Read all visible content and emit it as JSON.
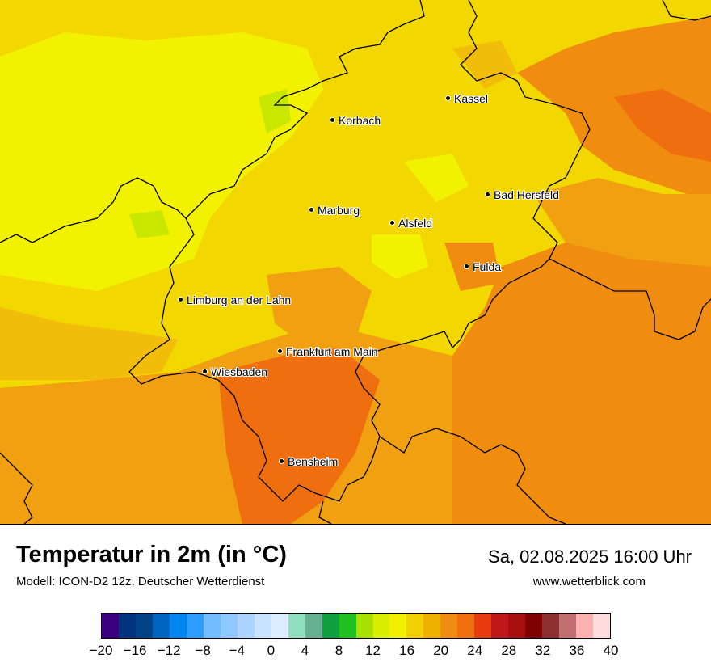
{
  "map": {
    "cities": [
      {
        "name": "Kassel",
        "icon": "city-dot-icon"
      },
      {
        "name": "Korbach",
        "icon": "city-dot-icon"
      },
      {
        "name": "Bad Hersfeld",
        "icon": "city-dot-icon"
      },
      {
        "name": "Marburg",
        "icon": "city-dot-icon"
      },
      {
        "name": "Alsfeld",
        "icon": "city-dot-icon"
      },
      {
        "name": "Fulda",
        "icon": "city-dot-icon"
      },
      {
        "name": "Limburg an der Lahn",
        "icon": "city-dot-icon"
      },
      {
        "name": "Frankfurt am Main",
        "icon": "city-dot-icon"
      },
      {
        "name": "Wiesbaden",
        "icon": "city-dot-icon"
      },
      {
        "name": "Bensheim",
        "icon": "city-dot-icon"
      }
    ],
    "colors": {
      "light_yellow": "#f2f200",
      "yellow": "#f2d800",
      "gold": "#f2bc0a",
      "orange": "#f08c10",
      "dark_orange": "#ee6e10",
      "green": "#c8e800",
      "border": "#000000"
    }
  },
  "footer": {
    "title": "Temperatur in 2m (in °C)",
    "model": "Modell: ICON-D2 12z, Deutscher Wetterdienst",
    "datetime": "Sa, 02.08.2025 16:00 Uhr",
    "website": "www.wetterblick.com"
  },
  "legend": {
    "colors": [
      "#3a0080",
      "#00347f",
      "#004485",
      "#0064c0",
      "#0086f0",
      "#2c9cff",
      "#72bcff",
      "#8ec8ff",
      "#acd4ff",
      "#c8e2ff",
      "#dcecff",
      "#90e0c0",
      "#66b090",
      "#10a040",
      "#20c020",
      "#a8e000",
      "#d8f000",
      "#f0f000",
      "#f0d000",
      "#f0b000",
      "#f08c10",
      "#f07010",
      "#e83c10",
      "#c01818",
      "#a81010",
      "#800000",
      "#8c3030",
      "#c07070",
      "#ffb0b0",
      "#ffdcdc"
    ],
    "ticks": [
      "−20",
      "−16",
      "−12",
      "−8",
      "−4",
      "0",
      "4",
      "8",
      "12",
      "16",
      "20",
      "24",
      "28",
      "32",
      "36",
      "40"
    ]
  }
}
